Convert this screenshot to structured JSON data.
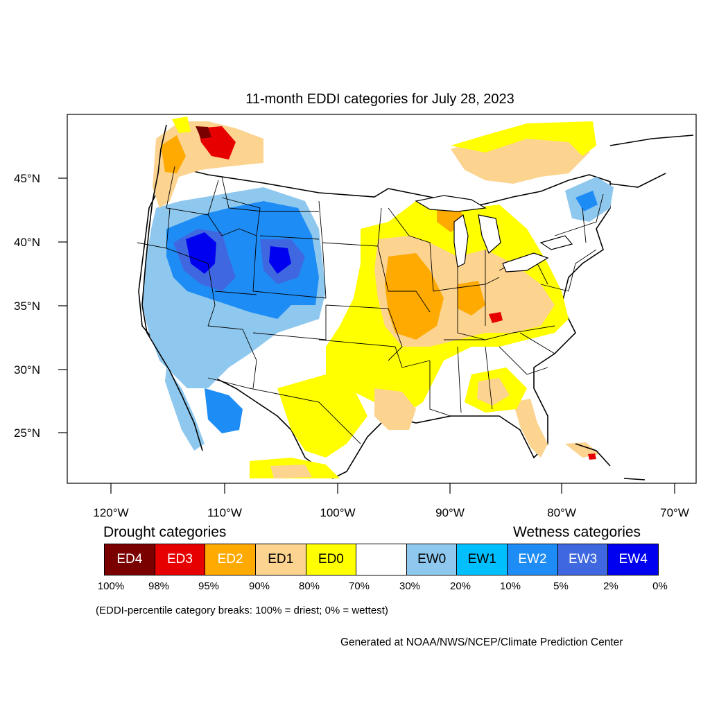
{
  "title": "11-month EDDI categories for July 28, 2023",
  "axes": {
    "lat_ticks": [
      "45°N",
      "40°N",
      "35°N",
      "30°N",
      "25°N"
    ],
    "lon_ticks": [
      "120°W",
      "110°W",
      "100°W",
      "90°W",
      "80°W",
      "70°W"
    ]
  },
  "legend": {
    "drought_heading": "Drought categories",
    "wetness_heading": "Wetness categories",
    "categories": [
      {
        "label": "ED4",
        "color": "#7a0000",
        "text_color": "#ffffff"
      },
      {
        "label": "ED3",
        "color": "#e60000",
        "text_color": "#ffffff"
      },
      {
        "label": "ED2",
        "color": "#ffaa00",
        "text_color": "#ffffff"
      },
      {
        "label": "ED1",
        "color": "#fcd38f",
        "text_color": "#000000"
      },
      {
        "label": "ED0",
        "color": "#ffff00",
        "text_color": "#000000"
      },
      {
        "label": "",
        "color": "#ffffff",
        "text_color": "#000000"
      },
      {
        "label": "EW0",
        "color": "#8fc8ee",
        "text_color": "#000000"
      },
      {
        "label": "EW1",
        "color": "#00bfff",
        "text_color": "#000000"
      },
      {
        "label": "EW2",
        "color": "#1e8cf5",
        "text_color": "#ffffff"
      },
      {
        "label": "EW3",
        "color": "#3f68e0",
        "text_color": "#ffffff"
      },
      {
        "label": "EW4",
        "color": "#0000f0",
        "text_color": "#ffffff"
      }
    ],
    "breaks": [
      "100%",
      "98%",
      "95%",
      "90%",
      "80%",
      "70%",
      "30%",
      "20%",
      "10%",
      "5%",
      "2%",
      "0%"
    ],
    "note": "(EDDI-percentile category breaks: 100% = driest; 0% = wettest)"
  },
  "credit": "Generated at NOAA/NWS/NCEP/Climate Prediction Center"
}
